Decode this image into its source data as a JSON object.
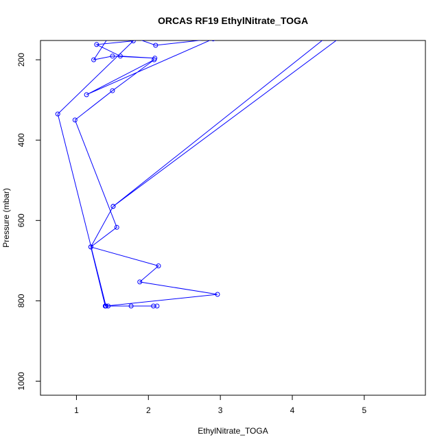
{
  "chart_data": {
    "type": "line",
    "title": "ORCAS RF19 EthylNitrate_TOGA",
    "xlabel": "EthylNitrate_TOGA",
    "ylabel": "Pressure (mbar)",
    "xlim": [
      0.5,
      5.85
    ],
    "ylim": [
      1035,
      152
    ],
    "y_reversed": true,
    "grid": false,
    "xticks": [
      1,
      2,
      3,
      4,
      5
    ],
    "yticks": [
      200,
      400,
      600,
      800,
      1000
    ],
    "series": [
      {
        "color": "#0000ff",
        "marker": "open-circle",
        "points": [
          [
            1.44,
            813
          ],
          [
            1.4,
            813
          ],
          [
            1.76,
            813
          ],
          [
            2.07,
            813
          ],
          [
            2.12,
            813
          ],
          [
            1.4,
            813
          ],
          [
            1.2,
            666
          ],
          [
            2.14,
            713
          ],
          [
            1.88,
            753
          ],
          [
            2.96,
            784
          ],
          [
            1.41,
            813
          ],
          [
            0.74,
            335
          ],
          [
            1.79,
            153
          ],
          [
            1.28,
            162
          ],
          [
            1.61,
            191
          ],
          [
            2.09,
            196
          ],
          [
            1.5,
            191
          ],
          [
            1.24,
            200
          ],
          [
            1.46,
            140
          ],
          [
            1.8,
            145
          ],
          [
            2.1,
            164
          ],
          [
            2.9,
            148
          ],
          [
            1.14,
            287
          ],
          [
            2.08,
            200
          ],
          [
            1.5,
            277
          ],
          [
            0.98,
            350
          ],
          [
            1.56,
            617
          ],
          [
            1.2,
            666
          ],
          [
            1.51,
            565
          ],
          [
            4.7,
            140
          ],
          [
            4.5,
            140
          ],
          [
            1.51,
            565
          ]
        ]
      }
    ]
  }
}
